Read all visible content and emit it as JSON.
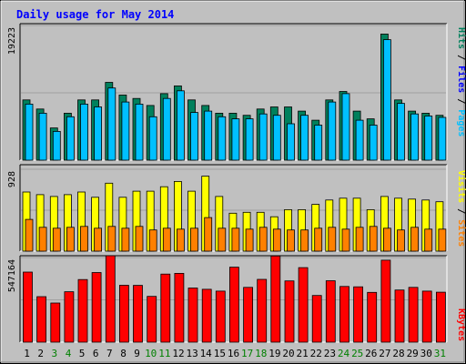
{
  "title": "Daily usage for May 2014",
  "colors": {
    "bg": "#c0c0c0",
    "title": "#0000ff",
    "hits": "#00805c",
    "files": "#00c0ff",
    "pages": "#00c0ff",
    "visits": "#ffff00",
    "sites": "#ff8000",
    "kbytes": "#ff0000",
    "day_weekend": "#008000",
    "day_weekday": "#000000"
  },
  "chart_data": [
    {
      "type": "bar",
      "name": "hits-files-pages",
      "ylabels": [
        "Pages",
        "Files",
        "Hits"
      ],
      "max_label": "19223",
      "ylim": [
        0,
        19223
      ],
      "categories": [
        "1",
        "2",
        "3",
        "4",
        "5",
        "6",
        "7",
        "8",
        "9",
        "10",
        "11",
        "12",
        "13",
        "14",
        "15",
        "16",
        "17",
        "18",
        "19",
        "20",
        "21",
        "22",
        "23",
        "24",
        "25",
        "26",
        "27",
        "28",
        "29",
        "30",
        "31"
      ],
      "series": [
        {
          "name": "Hits",
          "values": [
            8600,
            7300,
            4600,
            6700,
            8600,
            8600,
            11100,
            9300,
            8800,
            7800,
            9500,
            10600,
            8600,
            7800,
            6700,
            6700,
            6400,
            7300,
            7600,
            7600,
            7000,
            5700,
            8600,
            9800,
            7000,
            5900,
            18000,
            8600,
            7000,
            6700,
            6400
          ]
        },
        {
          "name": "Files",
          "values": [
            8000,
            6700,
            4100,
            6200,
            8000,
            7600,
            10300,
            8300,
            8000,
            6200,
            8800,
            9900,
            6800,
            7000,
            6200,
            5900,
            5900,
            6600,
            6400,
            5200,
            6400,
            5000,
            8300,
            9500,
            5700,
            5000,
            17200,
            8100,
            6600,
            6300,
            6100
          ]
        }
      ]
    },
    {
      "type": "bar",
      "name": "visits-sites",
      "ylabels": [
        "Sites",
        "Visits"
      ],
      "max_label": "928",
      "ylim": [
        0,
        928
      ],
      "categories": [
        "1",
        "2",
        "3",
        "4",
        "5",
        "6",
        "7",
        "8",
        "9",
        "10",
        "11",
        "12",
        "13",
        "14",
        "15",
        "16",
        "17",
        "18",
        "19",
        "20",
        "21",
        "22",
        "23",
        "24",
        "25",
        "26",
        "27",
        "28",
        "29",
        "30",
        "31"
      ],
      "series": [
        {
          "name": "Visits",
          "values": [
            670,
            640,
            620,
            640,
            670,
            610,
            770,
            610,
            680,
            680,
            730,
            790,
            680,
            850,
            620,
            430,
            440,
            440,
            390,
            470,
            470,
            530,
            580,
            600,
            600,
            470,
            620,
            600,
            590,
            580,
            560
          ]
        },
        {
          "name": "Sites",
          "values": [
            360,
            270,
            260,
            270,
            280,
            260,
            280,
            260,
            280,
            240,
            260,
            250,
            260,
            380,
            260,
            260,
            250,
            270,
            250,
            240,
            240,
            260,
            270,
            250,
            270,
            280,
            260,
            240,
            270,
            250,
            250
          ]
        }
      ]
    },
    {
      "type": "bar",
      "name": "kbytes",
      "ylabels": [
        "KBytes"
      ],
      "max_label": "547164",
      "ylim": [
        0,
        547164
      ],
      "categories": [
        "1",
        "2",
        "3",
        "4",
        "5",
        "6",
        "7",
        "8",
        "9",
        "10",
        "11",
        "12",
        "13",
        "14",
        "15",
        "16",
        "17",
        "18",
        "19",
        "20",
        "21",
        "22",
        "23",
        "24",
        "25",
        "26",
        "27",
        "28",
        "29",
        "30",
        "31"
      ],
      "series": [
        {
          "name": "KBytes",
          "values": [
            453000,
            294000,
            253000,
            326000,
            405000,
            450000,
            559000,
            368000,
            367000,
            296000,
            440000,
            445000,
            350000,
            342000,
            330000,
            485000,
            354000,
            406000,
            557000,
            396000,
            482000,
            302000,
            397000,
            360000,
            358000,
            322000,
            530000,
            337000,
            354000,
            330000,
            323000
          ]
        }
      ]
    }
  ]
}
